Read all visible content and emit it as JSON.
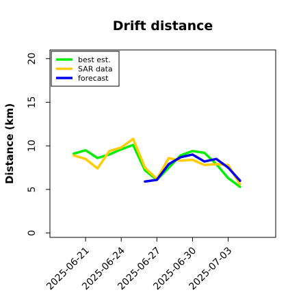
{
  "chart_data": {
    "type": "line",
    "title": "Drift distance",
    "xlabel": "",
    "ylabel": "Distance (km)",
    "ylim": [
      -0.5,
      21
    ],
    "xlim": [
      "2025-06-18T00:00",
      "2025-07-07T00:00"
    ],
    "yticks": [
      0,
      5,
      10,
      15,
      20
    ],
    "xticks": [
      "2025-06-21",
      "2025-06-24",
      "2025-06-27",
      "2025-06-30",
      "2025-07-03"
    ],
    "grid": false,
    "legend": {
      "placement": "top-left"
    },
    "series": [
      {
        "name": "best est.",
        "color": "#00ee00",
        "points": [
          [
            "2025-06-20T00:00",
            9.1
          ],
          [
            "2025-06-21T00:00",
            9.5
          ],
          [
            "2025-06-22T00:00",
            8.6
          ],
          [
            "2025-06-23T00:00",
            9.0
          ],
          [
            "2025-06-24T00:00",
            9.6
          ],
          [
            "2025-06-25T00:00",
            10.1
          ],
          [
            "2025-06-26T00:00",
            7.2
          ],
          [
            "2025-06-27T00:00",
            6.1
          ],
          [
            "2025-06-28T00:00",
            7.5
          ],
          [
            "2025-06-29T00:00",
            8.9
          ],
          [
            "2025-06-30T00:00",
            9.4
          ],
          [
            "2025-07-01T00:00",
            9.2
          ],
          [
            "2025-07-02T00:00",
            7.9
          ],
          [
            "2025-07-03T00:00",
            6.3
          ],
          [
            "2025-07-04T00:00",
            5.3
          ]
        ]
      },
      {
        "name": "SAR data",
        "color": "#ffcc00",
        "points": [
          [
            "2025-06-20T00:00",
            8.9
          ],
          [
            "2025-06-21T00:00",
            8.5
          ],
          [
            "2025-06-22T00:00",
            7.4
          ],
          [
            "2025-06-23T00:00",
            9.4
          ],
          [
            "2025-06-24T00:00",
            9.8
          ],
          [
            "2025-06-25T00:00",
            10.8
          ],
          [
            "2025-06-26T00:00",
            7.5
          ],
          [
            "2025-06-27T00:00",
            6.2
          ],
          [
            "2025-06-28T00:00",
            8.6
          ],
          [
            "2025-06-29T00:00",
            8.3
          ],
          [
            "2025-06-30T00:00",
            8.4
          ],
          [
            "2025-07-01T00:00",
            7.8
          ],
          [
            "2025-07-02T00:00",
            7.9
          ],
          [
            "2025-07-03T00:00",
            7.8
          ],
          [
            "2025-07-04T00:00",
            5.6
          ]
        ]
      },
      {
        "name": "forecast",
        "color": "#0000ee",
        "points": [
          [
            "2025-06-26T00:00",
            5.9
          ],
          [
            "2025-06-27T00:00",
            6.1
          ],
          [
            "2025-06-28T00:00",
            7.9
          ],
          [
            "2025-06-29T00:00",
            8.7
          ],
          [
            "2025-06-30T00:00",
            9.0
          ],
          [
            "2025-07-01T00:00",
            8.2
          ],
          [
            "2025-07-02T00:00",
            8.5
          ],
          [
            "2025-07-03T00:00",
            7.5
          ],
          [
            "2025-07-04T00:00",
            6.0
          ]
        ]
      }
    ]
  }
}
